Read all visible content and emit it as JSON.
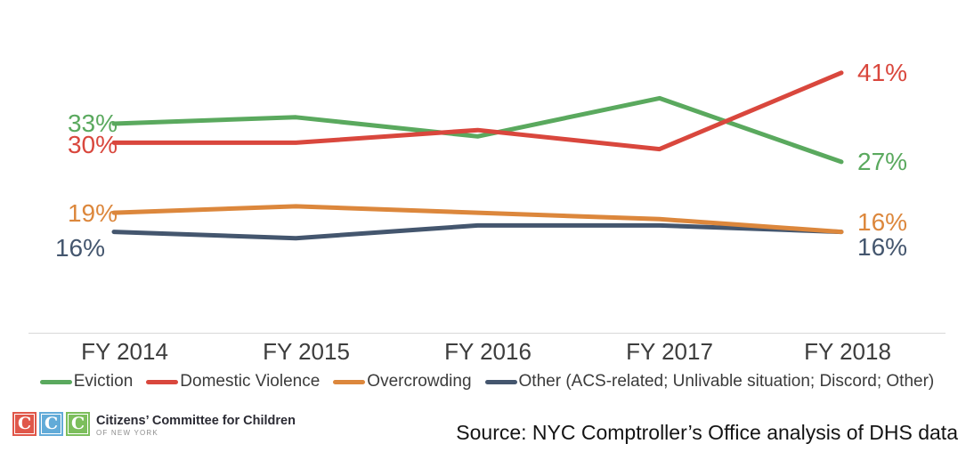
{
  "chart_data": {
    "type": "line",
    "title": "",
    "categories": [
      "FY 2014",
      "FY 2015",
      "FY 2016",
      "FY 2017",
      "FY 2018"
    ],
    "series": [
      {
        "name": "Eviction",
        "color": "#5aa95e",
        "values": [
          33,
          34,
          31,
          37,
          27
        ],
        "label_start": "33%",
        "label_end": "27%"
      },
      {
        "name": "Domestic Violence",
        "color": "#d9473d",
        "values": [
          30,
          30,
          32,
          29,
          41
        ],
        "label_start": "30%",
        "label_end": "41%"
      },
      {
        "name": "Overcrowding",
        "color": "#dc873c",
        "values": [
          19,
          20,
          19,
          18,
          16
        ],
        "label_start": "19%",
        "label_end": "16%"
      },
      {
        "name": "Other (ACS-related; Unlivable situation; Discord; Other)",
        "color": "#44566e",
        "values": [
          16,
          15,
          17,
          17,
          16
        ],
        "label_start": "16%",
        "label_end": "16%"
      }
    ],
    "unit": "%",
    "ylim": [
      10,
      45
    ],
    "grid": false,
    "legend_position": "bottom",
    "axis_color": "#d9d9d9"
  },
  "footer": {
    "logo": {
      "letters": [
        "C",
        "C",
        "C"
      ],
      "block_colors": [
        "#e0574a",
        "#62abd8",
        "#7cbe5c"
      ],
      "org_name": "Citizens’ Committee for Children",
      "org_sub": "OF NEW YORK"
    },
    "source": "Source: NYC Comptroller’s Office analysis of DHS data"
  }
}
